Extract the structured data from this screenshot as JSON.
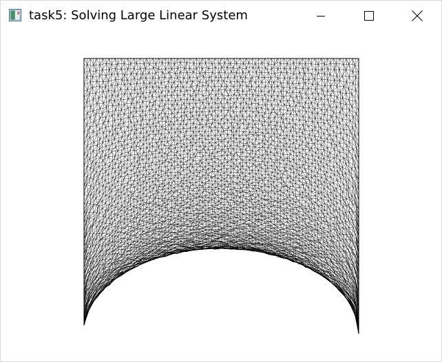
{
  "window": {
    "title": "task5: Solving Large Linear System",
    "icons": {
      "app": "app-window-icon",
      "minimize": "minimize-icon",
      "maximize": "maximize-icon",
      "close": "close-icon"
    }
  },
  "canvas": {
    "background": "#ffffff",
    "mesh_color": "#000000",
    "content": "triangular-mesh"
  }
}
